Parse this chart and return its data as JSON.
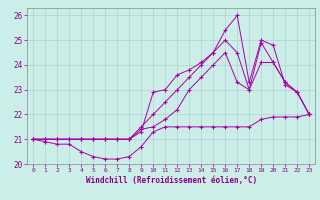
{
  "xlabel": "Windchill (Refroidissement éolien,°C)",
  "xlim": [
    -0.5,
    23.5
  ],
  "ylim": [
    20.0,
    26.3
  ],
  "yticks": [
    20,
    21,
    22,
    23,
    24,
    25,
    26
  ],
  "xticks": [
    0,
    1,
    2,
    3,
    4,
    5,
    6,
    7,
    8,
    9,
    10,
    11,
    12,
    13,
    14,
    15,
    16,
    17,
    18,
    19,
    20,
    21,
    22,
    23
  ],
  "bg_color": "#cceee8",
  "grid_color": "#aacccc",
  "line_color": "#aa00aa",
  "lines": [
    [
      21.0,
      20.9,
      20.8,
      20.8,
      20.5,
      20.3,
      20.2,
      20.2,
      20.3,
      20.7,
      21.3,
      21.5,
      21.5,
      21.5,
      21.5,
      21.5,
      21.5,
      21.5,
      21.5,
      21.8,
      21.9,
      21.9,
      21.9,
      22.0
    ],
    [
      21.0,
      21.0,
      21.0,
      21.0,
      21.0,
      21.0,
      21.0,
      21.0,
      21.0,
      21.3,
      22.9,
      23.0,
      23.6,
      23.8,
      24.1,
      24.5,
      25.4,
      26.0,
      23.3,
      25.0,
      24.8,
      23.2,
      22.9,
      22.0
    ],
    [
      21.0,
      21.0,
      21.0,
      21.0,
      21.0,
      21.0,
      21.0,
      21.0,
      21.0,
      21.5,
      22.0,
      22.5,
      23.0,
      23.5,
      24.0,
      24.5,
      25.0,
      24.5,
      23.0,
      24.9,
      24.1,
      23.3,
      22.9,
      22.0
    ],
    [
      21.0,
      21.0,
      21.0,
      21.0,
      21.0,
      21.0,
      21.0,
      21.0,
      21.0,
      21.4,
      21.5,
      21.8,
      22.2,
      23.0,
      23.5,
      24.0,
      24.5,
      23.3,
      23.0,
      24.1,
      24.1,
      23.3,
      22.9,
      22.0
    ]
  ]
}
